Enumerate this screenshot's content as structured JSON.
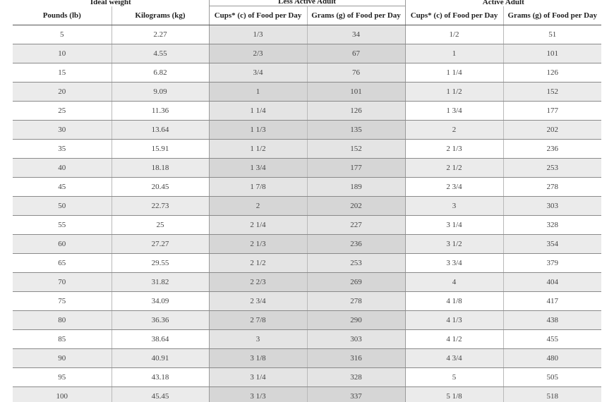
{
  "headers": {
    "groups": {
      "ideal_weight": "Ideal weight",
      "less_active_adult": "Less Active Adult",
      "active_adult": "Active Adult"
    },
    "columns": {
      "pounds": "Pounds (lb)",
      "kilograms": "Kilograms (kg)",
      "less_cups": "Cups* (c) of Food per Day",
      "less_grams": "Grams (g) of Food per Day",
      "active_cups": "Cups* (c) of Food per Day",
      "active_grams": "Grams (g) of Food per Day"
    }
  },
  "rows": [
    {
      "lb": "5",
      "kg": "2.27",
      "less_cups": "1/3",
      "less_grams": "34",
      "active_cups": "1/2",
      "active_grams": "51"
    },
    {
      "lb": "10",
      "kg": "4.55",
      "less_cups": "2/3",
      "less_grams": "67",
      "active_cups": "1",
      "active_grams": "101"
    },
    {
      "lb": "15",
      "kg": "6.82",
      "less_cups": "3/4",
      "less_grams": "76",
      "active_cups": "1 1/4",
      "active_grams": "126"
    },
    {
      "lb": "20",
      "kg": "9.09",
      "less_cups": "1",
      "less_grams": "101",
      "active_cups": "1 1/2",
      "active_grams": "152"
    },
    {
      "lb": "25",
      "kg": "11.36",
      "less_cups": "1 1/4",
      "less_grams": "126",
      "active_cups": "1 3/4",
      "active_grams": "177"
    },
    {
      "lb": "30",
      "kg": "13.64",
      "less_cups": "1 1/3",
      "less_grams": "135",
      "active_cups": "2",
      "active_grams": "202"
    },
    {
      "lb": "35",
      "kg": "15.91",
      "less_cups": "1 1/2",
      "less_grams": "152",
      "active_cups": "2 1/3",
      "active_grams": "236"
    },
    {
      "lb": "40",
      "kg": "18.18",
      "less_cups": "1 3/4",
      "less_grams": "177",
      "active_cups": "2 1/2",
      "active_grams": "253"
    },
    {
      "lb": "45",
      "kg": "20.45",
      "less_cups": "1 7/8",
      "less_grams": "189",
      "active_cups": "2 3/4",
      "active_grams": "278"
    },
    {
      "lb": "50",
      "kg": "22.73",
      "less_cups": "2",
      "less_grams": "202",
      "active_cups": "3",
      "active_grams": "303"
    },
    {
      "lb": "55",
      "kg": "25",
      "less_cups": "2 1/4",
      "less_grams": "227",
      "active_cups": "3 1/4",
      "active_grams": "328"
    },
    {
      "lb": "60",
      "kg": "27.27",
      "less_cups": "2 1/3",
      "less_grams": "236",
      "active_cups": "3 1/2",
      "active_grams": "354"
    },
    {
      "lb": "65",
      "kg": "29.55",
      "less_cups": "2 1/2",
      "less_grams": "253",
      "active_cups": "3 3/4",
      "active_grams": "379"
    },
    {
      "lb": "70",
      "kg": "31.82",
      "less_cups": "2 2/3",
      "less_grams": "269",
      "active_cups": "4",
      "active_grams": "404"
    },
    {
      "lb": "75",
      "kg": "34.09",
      "less_cups": "2 3/4",
      "less_grams": "278",
      "active_cups": "4 1/8",
      "active_grams": "417"
    },
    {
      "lb": "80",
      "kg": "36.36",
      "less_cups": "2 7/8",
      "less_grams": "290",
      "active_cups": "4 1/3",
      "active_grams": "438"
    },
    {
      "lb": "85",
      "kg": "38.64",
      "less_cups": "3",
      "less_grams": "303",
      "active_cups": "4 1/2",
      "active_grams": "455"
    },
    {
      "lb": "90",
      "kg": "40.91",
      "less_cups": "3 1/8",
      "less_grams": "316",
      "active_cups": "4 3/4",
      "active_grams": "480"
    },
    {
      "lb": "95",
      "kg": "43.18",
      "less_cups": "3 1/4",
      "less_grams": "328",
      "active_cups": "5",
      "active_grams": "505"
    },
    {
      "lb": "100",
      "kg": "45.45",
      "less_cups": "3 1/3",
      "less_grams": "337",
      "active_cups": "5 1/8",
      "active_grams": "518"
    }
  ],
  "colors": {
    "row_alt": "#ebebeb",
    "less_active_shade": "#d6d6d6",
    "rule": "#8a8a8a"
  }
}
